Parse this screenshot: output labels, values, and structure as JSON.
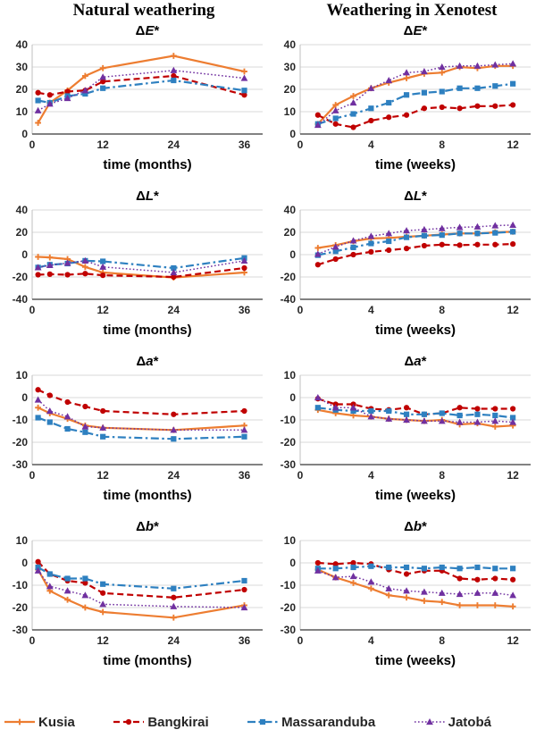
{
  "page": {
    "columns": [
      "Natural weathering",
      "Weathering in Xenotest"
    ],
    "legend": [
      {
        "id": "kusia",
        "label": "Kusia"
      },
      {
        "id": "bangkirai",
        "label": "Bangkirai"
      },
      {
        "id": "massaranduba",
        "label": "Massaranduba"
      },
      {
        "id": "jatoba",
        "label": "Jatobá"
      }
    ],
    "series_styles": {
      "kusia": {
        "color": "#ED7D31",
        "line": "solid",
        "marker": "plus"
      },
      "bangkirai": {
        "color": "#C00000",
        "line": "dashed",
        "marker": "circle"
      },
      "massaranduba": {
        "color": "#2E80C0",
        "line": "dashdot",
        "marker": "square"
      },
      "jatoba": {
        "color": "#7030A0",
        "line": "dotted",
        "marker": "triangle"
      }
    },
    "grid_color": "#d9d9d9",
    "axis_color": "#808080"
  },
  "chart_data": [
    {
      "type": "line",
      "id": "dE-natural",
      "title": {
        "delta": "Δ",
        "letter": "E",
        "star": "*"
      },
      "xlabel": "time (months)",
      "x": [
        1,
        3,
        6,
        9,
        12,
        24,
        36
      ],
      "xticks": [
        0,
        12,
        24,
        36
      ],
      "xlim": [
        0,
        38.5
      ],
      "ylim": [
        0,
        40
      ],
      "yticks": [
        0,
        10,
        20,
        30,
        40
      ],
      "series": [
        {
          "name": "kusia",
          "values": [
            5,
            14,
            19.5,
            26,
            29.5,
            35,
            28
          ]
        },
        {
          "name": "bangkirai",
          "values": [
            18.5,
            17.5,
            19,
            19.5,
            23.5,
            26,
            17.5
          ]
        },
        {
          "name": "massaranduba",
          "values": [
            15,
            14,
            17,
            18,
            20.5,
            24,
            19.5
          ]
        },
        {
          "name": "jatoba",
          "values": [
            10.5,
            13.5,
            16,
            19.5,
            25.5,
            28.5,
            25
          ]
        }
      ]
    },
    {
      "type": "line",
      "id": "dE-xenotest",
      "title": {
        "delta": "Δ",
        "letter": "E",
        "star": "*"
      },
      "xlabel": "time (weeks)",
      "x": [
        1,
        2,
        3,
        4,
        5,
        6,
        7,
        8,
        9,
        10,
        11,
        12
      ],
      "xticks": [
        0,
        4,
        8,
        12
      ],
      "xlim": [
        0,
        12.8
      ],
      "ylim": [
        0,
        40
      ],
      "yticks": [
        0,
        10,
        20,
        30,
        40
      ],
      "series": [
        {
          "name": "kusia",
          "values": [
            4.5,
            13,
            17,
            20.5,
            23,
            25,
            27,
            27.5,
            30,
            29.5,
            30.5,
            30.5
          ]
        },
        {
          "name": "bangkirai",
          "values": [
            8.5,
            4.5,
            3,
            6,
            7.5,
            8.5,
            11.5,
            12,
            11.5,
            12.5,
            12.5,
            13
          ]
        },
        {
          "name": "massaranduba",
          "values": [
            4.5,
            7,
            9,
            11.5,
            14,
            17.5,
            18.5,
            19,
            20.5,
            20.5,
            21.5,
            22.5
          ]
        },
        {
          "name": "jatoba",
          "values": [
            4,
            10.5,
            14,
            20.5,
            24,
            27.5,
            28,
            30,
            30.5,
            30.5,
            31,
            31.5
          ]
        }
      ]
    },
    {
      "type": "line",
      "id": "dL-natural",
      "title": {
        "delta": "Δ",
        "letter": "L",
        "star": "*"
      },
      "xlabel": "time (months)",
      "x": [
        1,
        3,
        6,
        9,
        12,
        24,
        36
      ],
      "xticks": [
        0,
        12,
        24,
        36
      ],
      "xlim": [
        0,
        38.5
      ],
      "ylim": [
        -40,
        40
      ],
      "yticks": [
        -40,
        -20,
        0,
        20,
        40
      ],
      "series": [
        {
          "name": "kusia",
          "values": [
            -2,
            -2.5,
            -4,
            -11,
            -16,
            -20.5,
            -16
          ]
        },
        {
          "name": "bangkirai",
          "values": [
            -18,
            -17.5,
            -18,
            -17,
            -18.5,
            -20,
            -12
          ]
        },
        {
          "name": "massaranduba",
          "values": [
            -11.5,
            -9,
            -8,
            -5.5,
            -6,
            -12,
            -3
          ]
        },
        {
          "name": "jatoba",
          "values": [
            -11.5,
            -9.5,
            -7.5,
            -5.5,
            -11,
            -16,
            -5.5
          ]
        }
      ]
    },
    {
      "type": "line",
      "id": "dL-xenotest",
      "title": {
        "delta": "Δ",
        "letter": "L",
        "star": "*"
      },
      "xlabel": "time (weeks)",
      "x": [
        1,
        2,
        3,
        4,
        5,
        6,
        7,
        8,
        9,
        10,
        11,
        12
      ],
      "xticks": [
        0,
        4,
        8,
        12
      ],
      "xlim": [
        0,
        12.8
      ],
      "ylim": [
        -40,
        40
      ],
      "yticks": [
        -40,
        -20,
        0,
        20,
        40
      ],
      "series": [
        {
          "name": "kusia",
          "values": [
            6,
            8.5,
            12,
            14.5,
            15,
            16,
            17,
            18,
            19,
            19,
            20,
            20.5
          ]
        },
        {
          "name": "bangkirai",
          "values": [
            -9,
            -4,
            0,
            2.5,
            4,
            5.5,
            8,
            9,
            8.5,
            9,
            9,
            9.5
          ]
        },
        {
          "name": "massaranduba",
          "values": [
            -0.5,
            3,
            6.5,
            10,
            12,
            15.5,
            17,
            17.5,
            19,
            19,
            19.5,
            20.5
          ]
        },
        {
          "name": "jatoba",
          "values": [
            0.5,
            7,
            12.5,
            16.5,
            19,
            21.5,
            22.5,
            23.5,
            24.5,
            25,
            26,
            26.5
          ]
        }
      ]
    },
    {
      "type": "line",
      "id": "da-natural",
      "title": {
        "delta": "Δ",
        "letter": "a",
        "star": "*"
      },
      "xlabel": "time (months)",
      "x": [
        1,
        3,
        6,
        9,
        12,
        24,
        36
      ],
      "xticks": [
        0,
        12,
        24,
        36
      ],
      "xlim": [
        0,
        38.5
      ],
      "ylim": [
        -30,
        10
      ],
      "yticks": [
        -30,
        -20,
        -10,
        0,
        10
      ],
      "series": [
        {
          "name": "kusia",
          "values": [
            -4.5,
            -7,
            -9.5,
            -12.5,
            -13.5,
            -14.5,
            -12.5
          ]
        },
        {
          "name": "bangkirai",
          "values": [
            3.5,
            1,
            -2,
            -4,
            -6,
            -7.5,
            -6
          ]
        },
        {
          "name": "massaranduba",
          "values": [
            -9,
            -11,
            -14,
            -15.5,
            -17.5,
            -18.5,
            -17.5
          ]
        },
        {
          "name": "jatoba",
          "values": [
            -1,
            -6,
            -8.5,
            -13,
            -13.5,
            -14.5,
            -14.5
          ]
        }
      ]
    },
    {
      "type": "line",
      "id": "da-xenotest",
      "title": {
        "delta": "Δ",
        "letter": "a",
        "star": "*"
      },
      "xlabel": "time (weeks)",
      "x": [
        1,
        2,
        3,
        4,
        5,
        6,
        7,
        8,
        9,
        10,
        11,
        12
      ],
      "xticks": [
        0,
        4,
        8,
        12
      ],
      "xlim": [
        0,
        12.8
      ],
      "ylim": [
        -30,
        10
      ],
      "yticks": [
        -30,
        -20,
        -10,
        0,
        10
      ],
      "series": [
        {
          "name": "kusia",
          "values": [
            -5.5,
            -7,
            -8,
            -8.5,
            -9.5,
            -10,
            -10.5,
            -10,
            -12,
            -11.5,
            -13,
            -12.5
          ]
        },
        {
          "name": "bangkirai",
          "values": [
            -0.5,
            -3,
            -3,
            -5,
            -5.5,
            -4.5,
            -7.5,
            -7,
            -4.5,
            -5,
            -5,
            -5
          ]
        },
        {
          "name": "massaranduba",
          "values": [
            -4.5,
            -5.5,
            -6,
            -6,
            -6,
            -7.5,
            -7.5,
            -7,
            -8,
            -7.5,
            -8,
            -9
          ]
        },
        {
          "name": "jatoba",
          "values": [
            0,
            -4.5,
            -4.5,
            -8.5,
            -9.5,
            -10,
            -10.5,
            -10.5,
            -11,
            -11,
            -10.5,
            -11
          ]
        }
      ]
    },
    {
      "type": "line",
      "id": "db-natural",
      "title": {
        "delta": "Δ",
        "letter": "b",
        "star": "*"
      },
      "xlabel": "time (months)",
      "x": [
        1,
        3,
        6,
        9,
        12,
        24,
        36
      ],
      "xticks": [
        0,
        12,
        24,
        36
      ],
      "xlim": [
        0,
        38.5
      ],
      "ylim": [
        -30,
        10
      ],
      "yticks": [
        -30,
        -20,
        -10,
        0,
        10
      ],
      "series": [
        {
          "name": "kusia",
          "values": [
            -3,
            -12.5,
            -16.5,
            -20,
            -22,
            -24.5,
            -19
          ]
        },
        {
          "name": "bangkirai",
          "values": [
            0.5,
            -5,
            -8,
            -9,
            -13.5,
            -15.5,
            -12
          ]
        },
        {
          "name": "massaranduba",
          "values": [
            -2,
            -5,
            -7,
            -7,
            -9.5,
            -11.5,
            -8
          ]
        },
        {
          "name": "jatoba",
          "values": [
            -3.5,
            -10.5,
            -12.5,
            -14.5,
            -18.5,
            -19.5,
            -20
          ]
        }
      ]
    },
    {
      "type": "line",
      "id": "db-xenotest",
      "title": {
        "delta": "Δ",
        "letter": "b",
        "star": "*"
      },
      "xlabel": "time (weeks)",
      "x": [
        1,
        2,
        3,
        4,
        5,
        6,
        7,
        8,
        9,
        10,
        11,
        12
      ],
      "xticks": [
        0,
        4,
        8,
        12
      ],
      "xlim": [
        0,
        12.8
      ],
      "ylim": [
        -30,
        10
      ],
      "yticks": [
        -30,
        -20,
        -10,
        0,
        10
      ],
      "series": [
        {
          "name": "kusia",
          "values": [
            -3,
            -6.5,
            -9,
            -11.5,
            -14.5,
            -15.5,
            -17,
            -17.5,
            -19,
            -19,
            -19,
            -19.5
          ]
        },
        {
          "name": "bangkirai",
          "values": [
            0,
            -0.5,
            0,
            -0.5,
            -3,
            -5,
            -3.5,
            -3.5,
            -7,
            -7.5,
            -7,
            -7.5
          ]
        },
        {
          "name": "massaranduba",
          "values": [
            -2.5,
            -2.5,
            -2,
            -1.5,
            -2,
            -2,
            -2.5,
            -2,
            -2.5,
            -2,
            -2.5,
            -2.5
          ]
        },
        {
          "name": "jatoba",
          "values": [
            -3.5,
            -6.5,
            -6,
            -8.5,
            -11.5,
            -12.5,
            -13,
            -13.5,
            -14,
            -13.5,
            -13.5,
            -14.5
          ]
        }
      ]
    }
  ]
}
